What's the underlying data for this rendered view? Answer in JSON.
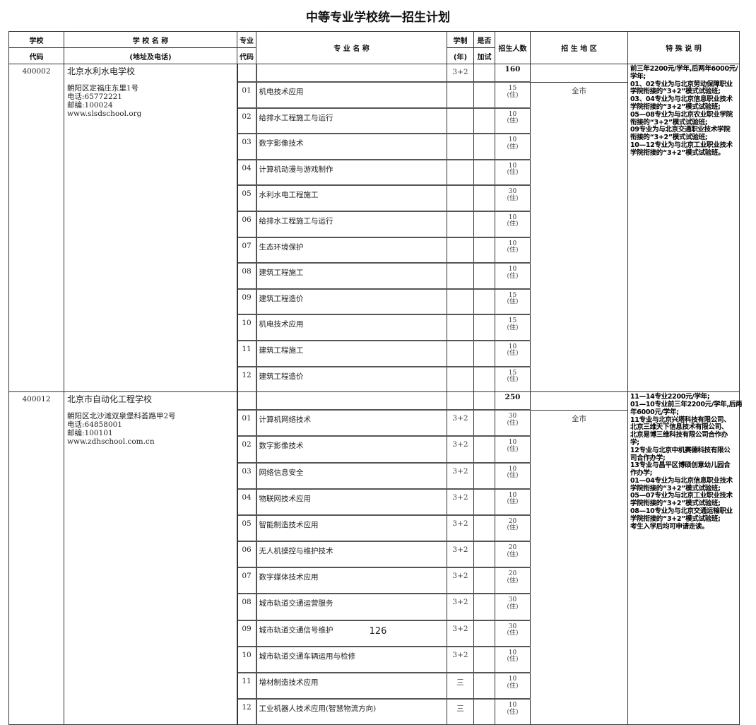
{
  "title": "中等专业学校统一招生计划",
  "headers": {
    "school_code": [
      "学校",
      "代码"
    ],
    "school_name": [
      "学 校 名 称",
      "(地址及电话)"
    ],
    "major_code": [
      "专业",
      "代码"
    ],
    "major_name": "专  业  名  称",
    "duration": [
      "学制",
      "(年)"
    ],
    "extra_test": [
      "是否",
      "加试"
    ],
    "enrollment": "招生人数",
    "region": "招 生 地 区",
    "notes": "特  殊  说  明"
  },
  "schools": [
    {
      "code": "400002",
      "name": "北京水利水电学校",
      "address": "朝阳区定福庄东里1号",
      "phone": "电话:65772221",
      "postcode": "邮编:100024",
      "website": "www.slsdschool.org",
      "summary": {
        "duration": "3+2",
        "extra_test": "",
        "total": "160",
        "region": ""
      },
      "region": "全市",
      "notes": [
        "前三年2200元/学年,后两年6000元/",
        "学年;",
        "01、02专业为与北京劳动保障职业",
        "学院衔接的“3+2”模式试验班;",
        "03、04专业为与北京信息职业技术",
        "学院衔接的“3+2”模式试验班;",
        "05—08专业为与北京农业职业学院",
        "衔接的“3+2”模式试验班;",
        "09专业为与北京交通职业技术学院",
        "衔接的“3+2”模式试验班;",
        "10—12专业为与北京工业职业技术",
        "学院衔接的“3+2”模式试验班。"
      ],
      "majors": [
        {
          "code": "01",
          "name": "机电技术应用",
          "duration": "",
          "extra_test": "",
          "count": "15",
          "note": "(住)"
        },
        {
          "code": "02",
          "name": "给排水工程施工与运行",
          "duration": "",
          "extra_test": "",
          "count": "10",
          "note": "(住)"
        },
        {
          "code": "03",
          "name": "数字影像技术",
          "duration": "",
          "extra_test": "",
          "count": "10",
          "note": "(住)"
        },
        {
          "code": "04",
          "name": "计算机动漫与游戏制作",
          "duration": "",
          "extra_test": "",
          "count": "10",
          "note": "(住)"
        },
        {
          "code": "05",
          "name": "水利水电工程施工",
          "duration": "",
          "extra_test": "",
          "count": "30",
          "note": "(住)"
        },
        {
          "code": "06",
          "name": "给排水工程施工与运行",
          "duration": "",
          "extra_test": "",
          "count": "10",
          "note": "(住)"
        },
        {
          "code": "07",
          "name": "生态环境保护",
          "duration": "",
          "extra_test": "",
          "count": "10",
          "note": "(住)"
        },
        {
          "code": "08",
          "name": "建筑工程施工",
          "duration": "",
          "extra_test": "",
          "count": "10",
          "note": "(住)"
        },
        {
          "code": "09",
          "name": "建筑工程造价",
          "duration": "",
          "extra_test": "",
          "count": "15",
          "note": "(住)"
        },
        {
          "code": "10",
          "name": "机电技术应用",
          "duration": "",
          "extra_test": "",
          "count": "15",
          "note": "(住)"
        },
        {
          "code": "11",
          "name": "建筑工程施工",
          "duration": "",
          "extra_test": "",
          "count": "10",
          "note": "(住)"
        },
        {
          "code": "12",
          "name": "建筑工程造价",
          "duration": "",
          "extra_test": "",
          "count": "15",
          "note": "(住)"
        }
      ]
    },
    {
      "code": "400012",
      "name": "北京市自动化工程学校",
      "address": "朝阳区北沙滩双泉堡科荟路甲2号",
      "phone": "电话:64858001",
      "postcode": "邮编:100101",
      "website": "www.zdhschool.com.cn",
      "summary": {
        "duration": "",
        "extra_test": "",
        "total": "250",
        "region": ""
      },
      "region": "全市",
      "notes": [
        "11—14专业2200元/学年;",
        "01—10专业前三年2200元/学年,后两",
        "年6000元/学年;",
        "11专业与北京兴塔科技有限公司、",
        "北京三维天下信息技术有限公司、",
        "北京易博三维科技有限公司合作办",
        "学;",
        "12专业与北京中机赛德科技有限公",
        "司合作办学;",
        "13专业与昌平区博硕创意幼儿园合",
        "作办学;",
        "01—04专业为与北京信息职业技术",
        "学院衔接的“3+2”模式试验班;",
        "05—07专业为与北京工业职业技术",
        "学院衔接的“3+2”模式试验班;",
        "08—10专业为与北京交通运输职业",
        "学院衔接的“3+2”模式试验班;",
        "考生入学后均可申请走读。"
      ],
      "majors": [
        {
          "code": "01",
          "name": "计算机网络技术",
          "duration": "3+2",
          "extra_test": "",
          "count": "30",
          "note": "(住)"
        },
        {
          "code": "02",
          "name": "数字影像技术",
          "duration": "3+2",
          "extra_test": "",
          "count": "10",
          "note": "(住)"
        },
        {
          "code": "03",
          "name": "网络信息安全",
          "duration": "3+2",
          "extra_test": "",
          "count": "10",
          "note": "(住)"
        },
        {
          "code": "04",
          "name": "物联网技术应用",
          "duration": "3+2",
          "extra_test": "",
          "count": "10",
          "note": "(住)"
        },
        {
          "code": "05",
          "name": "智能制造技术应用",
          "duration": "3+2",
          "extra_test": "",
          "count": "20",
          "note": "(住)"
        },
        {
          "code": "06",
          "name": "无人机操控与维护技术",
          "duration": "3+2",
          "extra_test": "",
          "count": "20",
          "note": "(住)"
        },
        {
          "code": "07",
          "name": "数字媒体技术应用",
          "duration": "3+2",
          "extra_test": "",
          "count": "20",
          "note": "(住)"
        },
        {
          "code": "08",
          "name": "城市轨道交通运营服务",
          "duration": "3+2",
          "extra_test": "",
          "count": "30",
          "note": "(住)"
        },
        {
          "code": "09",
          "name": "城市轨道交通信号维护",
          "duration": "3+2",
          "extra_test": "",
          "count": "30",
          "note": "(住)"
        },
        {
          "code": "10",
          "name": "城市轨道交通车辆运用与检修",
          "duration": "3+2",
          "extra_test": "",
          "count": "10",
          "note": "(住)"
        },
        {
          "code": "11",
          "name": "增材制造技术应用",
          "duration": "三",
          "extra_test": "",
          "count": "10",
          "note": "(住)"
        },
        {
          "code": "12",
          "name": "工业机器人技术应用(智慧物流方向)",
          "duration": "三",
          "extra_test": "",
          "count": "10",
          "note": "(住)"
        }
      ]
    }
  ],
  "page_number": "126"
}
